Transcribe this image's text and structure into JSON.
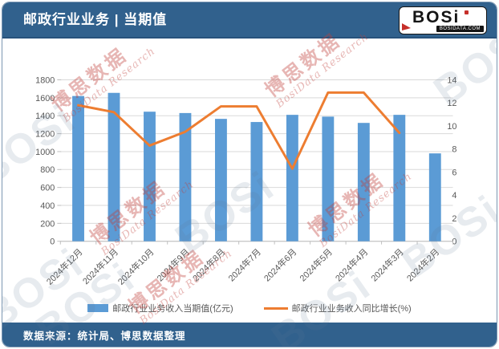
{
  "header": {
    "title": "邮政行业业务 | 当期值",
    "logo": {
      "text": "BOSi",
      "subtext": "BOSIDATA.COM"
    }
  },
  "footer": {
    "source": "数据来源：统计局、博思数据整理"
  },
  "legend": {
    "bar_label": "邮政行业业务收入当期值(亿元)",
    "line_label": "邮政行业业务收入同比增长(%)"
  },
  "watermarks": {
    "cn": "博思数据",
    "en": "BosiData Research",
    "logo": "BOSi"
  },
  "colors": {
    "header_bg": "#31618D",
    "bar": "#5B9BD5",
    "line": "#ED7D31",
    "grid": "#D9D9D9",
    "axis_line": "#BFBFBF",
    "axis_text": "#595959",
    "logo_red": "#C62F2A"
  },
  "chart_data": {
    "type": "bar+line",
    "title": "邮政行业业务 | 当期值",
    "categories": [
      "2024年12月",
      "2024年11月",
      "2024年10月",
      "2024年9月",
      "2024年8月",
      "2024年7月",
      "2024年6月",
      "2024年5月",
      "2024年4月",
      "2024年3月",
      "2024年2月"
    ],
    "series": [
      {
        "name": "邮政行业业务收入当期值(亿元)",
        "type": "bar",
        "axis": "left",
        "values": [
          1620,
          1655,
          1445,
          1430,
          1365,
          1330,
          1410,
          1390,
          1320,
          1410,
          980
        ]
      },
      {
        "name": "邮政行业业务收入同比增长(%)",
        "type": "line",
        "axis": "right",
        "values": [
          11.8,
          11.2,
          8.3,
          9.5,
          11.7,
          11.7,
          6.3,
          12.9,
          12.9,
          9.4,
          null
        ]
      }
    ],
    "left_axis": {
      "min": 0,
      "max": 1800,
      "step": 200,
      "ticks": [
        0,
        200,
        400,
        600,
        800,
        1000,
        1200,
        1400,
        1600,
        1800
      ]
    },
    "right_axis": {
      "min": 0,
      "max": 14,
      "step": 2,
      "ticks": [
        0,
        2,
        4,
        6,
        8,
        10,
        12,
        14
      ]
    },
    "grid": true,
    "legend_position": "bottom",
    "xlabel": "",
    "ylabel": ""
  }
}
